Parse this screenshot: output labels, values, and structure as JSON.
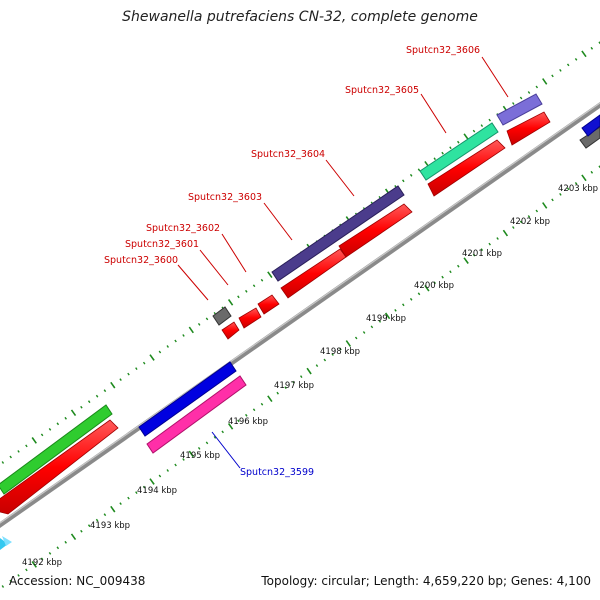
{
  "title": "Shewanella putrefaciens CN-32, complete genome",
  "footer": {
    "accession": "Accession: NC_009438",
    "summary": "Topology: circular; Length: 4,659,220 bp; Genes: 4,100"
  },
  "colors": {
    "backbone": "#8a8a8a",
    "cds": "#ff0000",
    "tick": "#1e8a1e",
    "label_top": "#cc0000",
    "label_bottom": "#0000cc"
  },
  "kbp_labels": [
    {
      "text": "4192 kbp"
    },
    {
      "text": "4193 kbp"
    },
    {
      "text": "4194 kbp"
    },
    {
      "text": "4195 kbp"
    },
    {
      "text": "4196 kbp"
    },
    {
      "text": "4197 kbp"
    },
    {
      "text": "4198 kbp"
    },
    {
      "text": "4199 kbp"
    },
    {
      "text": "4200 kbp"
    },
    {
      "text": "4201 kbp"
    },
    {
      "text": "4202 kbp"
    },
    {
      "text": "4203 kbp"
    }
  ],
  "gene_labels": [
    {
      "text": "Sputcn32_3606",
      "color": "#cc0000"
    },
    {
      "text": "Sputcn32_3605",
      "color": "#cc0000"
    },
    {
      "text": "Sputcn32_3604",
      "color": "#cc0000"
    },
    {
      "text": "Sputcn32_3603",
      "color": "#cc0000"
    },
    {
      "text": "Sputcn32_3602",
      "color": "#cc0000"
    },
    {
      "text": "Sputcn32_3601",
      "color": "#cc0000"
    },
    {
      "text": "Sputcn32_3600",
      "color": "#cc0000"
    },
    {
      "text": "Sputcn32_3599",
      "color": "#0000cc"
    }
  ]
}
